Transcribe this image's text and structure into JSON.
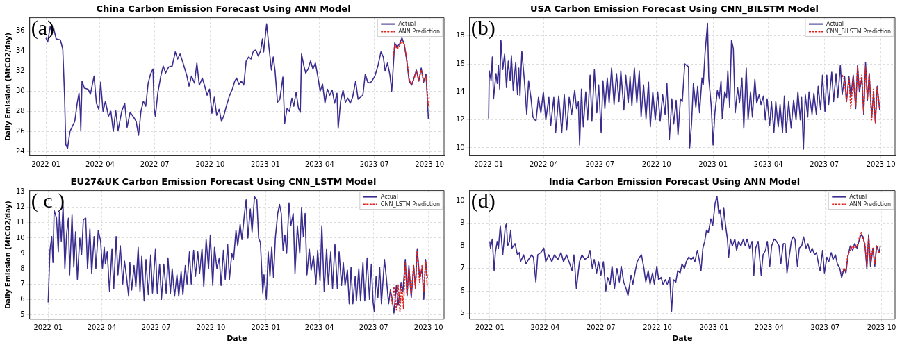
{
  "chart_data": [
    {
      "type": "line",
      "title": "China Carbon Emission Forecast Using ANN Model",
      "ylabel": "Daily Emission (MtCO2/day)",
      "annotations": [
        "(a)"
      ],
      "xlim": [
        "2021-12-05",
        "2023-10-25"
      ],
      "xticks": [
        "2022-01",
        "2022-04",
        "2022-07",
        "2022-10",
        "2023-01",
        "2023-04",
        "2023-07",
        "2023-10"
      ],
      "ylim": [
        23.6,
        37.3
      ],
      "yticks": [
        24,
        26,
        28,
        30,
        32,
        34,
        36
      ],
      "grid": true,
      "legend": "top right",
      "series": [
        {
          "name": "Actual",
          "color": "#3a2d8f",
          "x": [
            "2022-01-01",
            "2022-01-04",
            "2022-01-08",
            "2022-01-11",
            "2022-01-14",
            "2022-01-18",
            "2022-01-25",
            "2022-01-29",
            "2022-02-01",
            "2022-02-03",
            "2022-02-06",
            "2022-02-10",
            "2022-02-14",
            "2022-02-18",
            "2022-02-22",
            "2022-02-25",
            "2022-02-27",
            "2022-02-28",
            "2022-03-02",
            "2022-03-06",
            "2022-03-12",
            "2022-03-16",
            "2022-03-22",
            "2022-03-26",
            "2022-03-30",
            "2022-04-02",
            "2022-04-06",
            "2022-04-10",
            "2022-04-15",
            "2022-04-19",
            "2022-04-23",
            "2022-04-27",
            "2022-05-01",
            "2022-05-07",
            "2022-05-12",
            "2022-05-16",
            "2022-05-21",
            "2022-05-27",
            "2022-05-31",
            "2022-06-04",
            "2022-06-08",
            "2022-06-12",
            "2022-06-16",
            "2022-06-20",
            "2022-06-24",
            "2022-06-28",
            "2022-06-30",
            "2022-07-02",
            "2022-07-06",
            "2022-07-11",
            "2022-07-15",
            "2022-07-19",
            "2022-07-24",
            "2022-07-30",
            "2022-08-04",
            "2022-08-08",
            "2022-08-12",
            "2022-08-17",
            "2022-08-23",
            "2022-08-27",
            "2022-08-31",
            "2022-09-05",
            "2022-09-09",
            "2022-09-13",
            "2022-09-18",
            "2022-09-22",
            "2022-09-26",
            "2022-09-30",
            "2022-10-04",
            "2022-10-08",
            "2022-10-12",
            "2022-10-16",
            "2022-10-20",
            "2022-10-24",
            "2022-10-28",
            "2022-11-02",
            "2022-11-07",
            "2022-11-11",
            "2022-11-14",
            "2022-11-18",
            "2022-11-22",
            "2022-11-26",
            "2022-11-30",
            "2022-12-04",
            "2022-12-08",
            "2022-12-12",
            "2022-12-16",
            "2022-12-20",
            "2022-12-24",
            "2022-12-27",
            "2022-12-29",
            "2023-01-03",
            "2023-01-07",
            "2023-01-11",
            "2023-01-14",
            "2023-01-17",
            "2023-01-21",
            "2023-01-25",
            "2023-01-30",
            "2023-02-02",
            "2023-02-06",
            "2023-02-10",
            "2023-02-14",
            "2023-02-17",
            "2023-02-21",
            "2023-02-25",
            "2023-02-28",
            "2023-03-02",
            "2023-03-06",
            "2023-03-09",
            "2023-03-13",
            "2023-03-17",
            "2023-03-21",
            "2023-03-25",
            "2023-03-29",
            "2023-04-02",
            "2023-04-06",
            "2023-04-10",
            "2023-04-14",
            "2023-04-18",
            "2023-04-22",
            "2023-04-26",
            "2023-04-30",
            "2023-05-02",
            "2023-05-06",
            "2023-05-10",
            "2023-05-14",
            "2023-05-18",
            "2023-05-22",
            "2023-05-26",
            "2023-05-31",
            "2023-06-04",
            "2023-06-08",
            "2023-06-12",
            "2023-06-16",
            "2023-06-20",
            "2023-06-24",
            "2023-06-28",
            "2023-07-02",
            "2023-07-07",
            "2023-07-12",
            "2023-07-16",
            "2023-07-19",
            "2023-07-23",
            "2023-07-27",
            "2023-07-30",
            "2023-08-04",
            "2023-08-08",
            "2023-08-12",
            "2023-08-16",
            "2023-08-20",
            "2023-08-24",
            "2023-08-28",
            "2023-09-01",
            "2023-09-05",
            "2023-09-09",
            "2023-09-13",
            "2023-09-17",
            "2023-09-21",
            "2023-09-25",
            "2023-09-29"
          ],
          "values": [
            35.3,
            34.9,
            36.4,
            35.9,
            36.2,
            35.2,
            35.1,
            34.2,
            29.5,
            24.7,
            24.3,
            26.0,
            26.5,
            27.0,
            28.8,
            29.8,
            28.0,
            26.1,
            31.0,
            30.3,
            30.2,
            29.7,
            31.5,
            28.8,
            28.2,
            30.9,
            28.0,
            29.0,
            27.5,
            28.0,
            26.0,
            28.1,
            26.1,
            28.0,
            28.8,
            26.4,
            27.9,
            27.4,
            27.0,
            25.6,
            28.0,
            29.0,
            28.5,
            30.8,
            31.7,
            32.2,
            28.3,
            27.5,
            29.8,
            31.5,
            32.5,
            31.8,
            32.4,
            32.5,
            33.9,
            33.2,
            33.7,
            32.8,
            31.6,
            30.5,
            31.5,
            30.8,
            32.8,
            30.6,
            31.3,
            30.5,
            29.6,
            30.2,
            27.8,
            29.4,
            27.6,
            28.2,
            27.0,
            27.6,
            28.5,
            29.5,
            30.2,
            31.0,
            31.3,
            30.7,
            31.0,
            30.6,
            33.0,
            33.4,
            33.2,
            34.0,
            34.1,
            33.5,
            34.0,
            35.2,
            33.9,
            36.7,
            34.3,
            32.1,
            33.4,
            32.0,
            28.9,
            29.2,
            31.4,
            26.8,
            28.3,
            28.0,
            29.3,
            28.5,
            29.9,
            28.3,
            27.9,
            33.7,
            32.5,
            31.8,
            32.2,
            33.0,
            32.2,
            32.8,
            31.5,
            30.0,
            30.7,
            28.8,
            30.2,
            29.6,
            30.1,
            28.8,
            29.8,
            26.3,
            29.0,
            30.1,
            28.9,
            29.3,
            28.8,
            29.4,
            31.0,
            29.2,
            29.4,
            29.6,
            31.7,
            30.9,
            30.8,
            31.1,
            31.5,
            32.5,
            33.9,
            33.4,
            32.0,
            32.8,
            31.6,
            30.0,
            34.8,
            34.4,
            34.7,
            35.3,
            34.6,
            33.0,
            31.0,
            30.6,
            31.3,
            32.1,
            31.0,
            32.3,
            30.9,
            31.7,
            27.2
          ]
        },
        {
          "name": "ANN Prediction",
          "color": "#e0201b",
          "line_style": "dashed",
          "x": [
            "2023-08-01",
            "2023-08-04",
            "2023-08-08",
            "2023-08-12",
            "2023-08-16",
            "2023-08-20",
            "2023-08-24",
            "2023-08-28",
            "2023-09-01",
            "2023-09-05",
            "2023-09-09",
            "2023-09-13",
            "2023-09-17",
            "2023-09-21",
            "2023-09-25",
            "2023-09-29"
          ],
          "values": [
            33.2,
            34.6,
            34.2,
            34.5,
            35.1,
            34.6,
            33.2,
            31.2,
            30.7,
            31.2,
            32.0,
            31.1,
            32.1,
            31.0,
            31.5,
            28.5
          ]
        }
      ]
    },
    {
      "type": "line",
      "title": "USA Carbon Emission Forecast Using CNN_BILSTM Model",
      "annotations": [
        "(b)"
      ],
      "xlim": [
        "2021-12-01",
        "2023-10-24"
      ],
      "xticks": [
        "2022-01",
        "2022-04",
        "2022-07",
        "2022-10",
        "2023-01",
        "2023-04",
        "2023-07",
        "2023-10"
      ],
      "ylim": [
        9.45,
        19.3
      ],
      "yticks": [
        10,
        12,
        14,
        16,
        18
      ],
      "grid": true,
      "legend": "top right",
      "series": [
        {
          "name": "Actual",
          "color": "#3a2d8f",
          "x": [
            "2022-01-01",
            "2022-01-02",
            "2022-01-05",
            "2022-01-07",
            "2022-01-09",
            "2022-01-13",
            "2022-01-15",
            "2022-01-17",
            "2022-01-19",
            "2022-01-21",
            "2022-01-24",
            "2022-01-27",
            "2022-01-30",
            "2022-02-02",
            "2022-02-05",
            "2022-02-07",
            "2022-02-10",
            "2022-02-14",
            "2022-02-17",
            "2022-02-19",
            "2022-02-21",
            "2022-02-24",
            "2022-02-28",
            "2022-03-04",
            "2022-03-07",
            "2022-03-11",
            "2022-03-14",
            "2022-03-19",
            "2022-03-23",
            "2022-03-27",
            "2022-03-31",
            "2022-04-04",
            "2022-04-09",
            "2022-04-12",
            "2022-04-17",
            "2022-04-20",
            "2022-04-25",
            "2022-04-30",
            "2022-05-04",
            "2022-05-08",
            "2022-05-12",
            "2022-05-16",
            "2022-05-21",
            "2022-05-24",
            "2022-05-27",
            "2022-05-29",
            "2022-06-01",
            "2022-06-04",
            "2022-06-08",
            "2022-06-11",
            "2022-06-15",
            "2022-06-18",
            "2022-06-22",
            "2022-06-26",
            "2022-06-29",
            "2022-07-03",
            "2022-07-06",
            "2022-07-09",
            "2022-07-13",
            "2022-07-16",
            "2022-07-20",
            "2022-07-24",
            "2022-07-28",
            "2022-08-01",
            "2022-08-04",
            "2022-08-09",
            "2022-08-12",
            "2022-08-16",
            "2022-08-19",
            "2022-08-22",
            "2022-08-26",
            "2022-08-30",
            "2022-09-03",
            "2022-09-06",
            "2022-09-10",
            "2022-09-14",
            "2022-09-18",
            "2022-09-21",
            "2022-09-25",
            "2022-09-29",
            "2022-10-03",
            "2022-10-07",
            "2022-10-11",
            "2022-10-15",
            "2022-10-18",
            "2022-10-22",
            "2022-10-26",
            "2022-10-29",
            "2022-11-02",
            "2022-11-05",
            "2022-11-09",
            "2022-11-12",
            "2022-11-16",
            "2022-11-19",
            "2022-11-22",
            "2022-11-24",
            "2022-11-27",
            "2022-11-30",
            "2022-12-04",
            "2022-12-07",
            "2022-12-10",
            "2022-12-14",
            "2022-12-16",
            "2022-12-19",
            "2022-12-23",
            "2022-12-25",
            "2022-12-29",
            "2023-01-01",
            "2023-01-04",
            "2023-01-08",
            "2023-01-11",
            "2023-01-14",
            "2023-01-16",
            "2023-01-20",
            "2023-01-23",
            "2023-01-25",
            "2023-01-28",
            "2023-01-31",
            "2023-02-03",
            "2023-02-06",
            "2023-02-10",
            "2023-02-13",
            "2023-02-17",
            "2023-02-20",
            "2023-02-24",
            "2023-02-27",
            "2023-03-03",
            "2023-03-06",
            "2023-03-10",
            "2023-03-13",
            "2023-03-17",
            "2023-03-20",
            "2023-03-24",
            "2023-03-27",
            "2023-03-30",
            "2023-04-03",
            "2023-04-06",
            "2023-04-10",
            "2023-04-13",
            "2023-04-17",
            "2023-04-20",
            "2023-04-24",
            "2023-04-27",
            "2023-04-30",
            "2023-05-04",
            "2023-05-08",
            "2023-05-12",
            "2023-05-16",
            "2023-05-19",
            "2023-05-23",
            "2023-05-25",
            "2023-05-28",
            "2023-05-31",
            "2023-06-04",
            "2023-06-06",
            "2023-06-11",
            "2023-06-14",
            "2023-06-18",
            "2023-06-21",
            "2023-06-25",
            "2023-06-28",
            "2023-07-02",
            "2023-07-05",
            "2023-07-08",
            "2023-07-13",
            "2023-07-16",
            "2023-07-20",
            "2023-07-23",
            "2023-07-27",
            "2023-07-30",
            "2023-08-03",
            "2023-08-06",
            "2023-08-10",
            "2023-08-13",
            "2023-08-17",
            "2023-08-21",
            "2023-08-24",
            "2023-08-27",
            "2023-08-31",
            "2023-09-03",
            "2023-09-06",
            "2023-09-09",
            "2023-09-12",
            "2023-09-16",
            "2023-09-19",
            "2023-09-22",
            "2023-09-25",
            "2023-09-29"
          ],
          "values": [
            12.1,
            15.5,
            14.8,
            16.5,
            13.5,
            15.3,
            14.6,
            15.9,
            14.2,
            17.7,
            15.6,
            16.7,
            14.3,
            16.2,
            14.8,
            16.6,
            14.1,
            16.1,
            13.8,
            15.7,
            13.7,
            16.9,
            14.9,
            12.4,
            14.8,
            13.5,
            12.2,
            11.9,
            13.6,
            12.5,
            14.0,
            12.0,
            13.6,
            11.6,
            13.6,
            11.1,
            13.7,
            11.1,
            13.8,
            11.3,
            13.6,
            12.4,
            14.1,
            12.8,
            13.3,
            10.2,
            14.2,
            11.5,
            14.0,
            12.0,
            15.2,
            11.9,
            15.6,
            12.5,
            14.5,
            11.1,
            14.8,
            12.8,
            15.0,
            13.2,
            15.7,
            13.1,
            15.3,
            13.3,
            15.5,
            12.7,
            15.2,
            13.2,
            15.1,
            13.0,
            15.7,
            13.2,
            15.5,
            12.2,
            14.5,
            12.1,
            14.7,
            11.5,
            14.0,
            12.0,
            14.0,
            11.9,
            13.8,
            12.4,
            14.6,
            10.6,
            13.5,
            11.7,
            13.4,
            10.9,
            13.5,
            13.3,
            16.0,
            15.9,
            15.8,
            10.0,
            11.7,
            14.6,
            12.9,
            14.4,
            12.5,
            15.0,
            14.5,
            16.8,
            18.9,
            15.0,
            13.0,
            10.2,
            12.5,
            14.1,
            13.5,
            14.8,
            12.1,
            14.0,
            13.6,
            15.5,
            12.9,
            17.7,
            17.1,
            12.5,
            14.3,
            13.2,
            15.0,
            11.4,
            15.7,
            12.0,
            14.0,
            12.2,
            14.9,
            13.2,
            13.8,
            13.1,
            13.7,
            12.0,
            13.5,
            11.6,
            13.3,
            11.1,
            13.3,
            11.5,
            13.1,
            11.1,
            13.7,
            11.1,
            13.3,
            11.4,
            13.4,
            12.0,
            14.0,
            12.0,
            13.6,
            9.9,
            13.8,
            12.2,
            14.0,
            12.4,
            13.9,
            12.4,
            14.4,
            12.7,
            15.2,
            12.6,
            15.2,
            13.1,
            15.4,
            13.3,
            15.3,
            13.6,
            15.9,
            13.8,
            15.1,
            13.3,
            15.1,
            13.6,
            15.2,
            12.8,
            15.9,
            14.0,
            15.0,
            12.4,
            16.1,
            13.4,
            15.3,
            12.2,
            13.9,
            11.8,
            14.4,
            12.7
          ]
        },
        {
          "name": "CNN_BILSTM Prediction",
          "color": "#e0201b",
          "line_style": "dashed",
          "x": [
            "2023-07-30",
            "2023-08-03",
            "2023-08-06",
            "2023-08-10",
            "2023-08-13",
            "2023-08-17",
            "2023-08-21",
            "2023-08-24",
            "2023-08-27",
            "2023-08-31",
            "2023-09-03",
            "2023-09-06",
            "2023-09-09",
            "2023-09-12",
            "2023-09-16",
            "2023-09-19",
            "2023-09-22",
            "2023-09-25",
            "2023-09-29"
          ],
          "values": [
            15.2,
            14.8,
            13.3,
            15.0,
            12.8,
            15.0,
            13.0,
            15.8,
            14.2,
            15.2,
            12.5,
            15.8,
            13.5,
            15.3,
            12.0,
            14.2,
            11.8,
            14.3,
            12.8
          ]
        }
      ]
    },
    {
      "type": "line",
      "title": "EU27&UK Carbon Emission Forecast Using CNN_LSTM Model",
      "xlabel": "Date",
      "ylabel": "Daily Emission (MtCO2/day)",
      "annotations": [
        "( c )"
      ],
      "xlim": [
        "2021-12-01",
        "2023-10-27"
      ],
      "xticks": [
        "2022-01",
        "2022-04",
        "2022-07",
        "2022-10",
        "2023-01",
        "2023-04",
        "2023-07",
        "2023-10"
      ],
      "ylim": [
        4.7,
        13.1
      ],
      "yticks": [
        5,
        6,
        7,
        8,
        9,
        10,
        11,
        12,
        13
      ],
      "grid": true,
      "legend": "top right",
      "series": [
        {
          "name": "Actual",
          "color": "#3a2d8f",
          "x": [
            "2022-01-01",
            "2022-01-04",
            "2022-01-07",
            "2022-01-09",
            "2022-01-11",
            "2022-01-15",
            "2022-01-18",
            "2022-01-20",
            "2022-01-23",
            "2022-01-26",
            "2022-01-29",
            "2022-02-01",
            "2022-02-04",
            "2022-02-06",
            "2022-02-10",
            "2022-02-13",
            "2022-02-16",
            "2022-02-19",
            "2022-02-23",
            "2022-02-26",
            "2022-03-01",
            "2022-03-05",
            "2022-03-08",
            "2022-03-12",
            "2022-03-15",
            "2022-03-19",
            "2022-03-22",
            "2022-03-26",
            "2022-03-30",
            "2022-04-02",
            "2022-04-05",
            "2022-04-07",
            "2022-04-10",
            "2022-04-14",
            "2022-04-18",
            "2022-04-21",
            "2022-04-25",
            "2022-04-28",
            "2022-05-02",
            "2022-05-06",
            "2022-05-09",
            "2022-05-12",
            "2022-05-16",
            "2022-05-18",
            "2022-05-21",
            "2022-05-25",
            "2022-05-28",
            "2022-06-01",
            "2022-06-04",
            "2022-06-07",
            "2022-06-11",
            "2022-06-14",
            "2022-06-18",
            "2022-06-22",
            "2022-06-25",
            "2022-06-30",
            "2022-07-03",
            "2022-07-07",
            "2022-07-10",
            "2022-07-14",
            "2022-07-18",
            "2022-07-21",
            "2022-07-25",
            "2022-07-28",
            "2022-08-01",
            "2022-08-05",
            "2022-08-08",
            "2022-08-12",
            "2022-08-15",
            "2022-08-19",
            "2022-08-22",
            "2022-08-26",
            "2022-08-29",
            "2022-09-02",
            "2022-09-05",
            "2022-09-09",
            "2022-09-12",
            "2022-09-16",
            "2022-09-19",
            "2022-09-23",
            "2022-09-27",
            "2022-09-30",
            "2022-10-04",
            "2022-10-07",
            "2022-10-11",
            "2022-10-15",
            "2022-10-18",
            "2022-10-22",
            "2022-10-25",
            "2022-10-29",
            "2022-11-01",
            "2022-11-05",
            "2022-11-08",
            "2022-11-12",
            "2022-11-15",
            "2022-11-19",
            "2022-11-22",
            "2022-11-26",
            "2022-11-29",
            "2022-12-02",
            "2022-12-06",
            "2022-12-09",
            "2022-12-13",
            "2022-12-17",
            "2022-12-20",
            "2022-12-23",
            "2022-12-27",
            "2022-12-29",
            "2023-01-02",
            "2023-01-05",
            "2023-01-08",
            "2023-01-11",
            "2023-01-14",
            "2023-01-17",
            "2023-01-21",
            "2023-01-24",
            "2023-01-27",
            "2023-01-30",
            "2023-02-02",
            "2023-02-05",
            "2023-02-09",
            "2023-02-12",
            "2023-02-16",
            "2023-02-19",
            "2023-02-23",
            "2023-02-27",
            "2023-03-02",
            "2023-03-05",
            "2023-03-08",
            "2023-03-11",
            "2023-03-15",
            "2023-03-18",
            "2023-03-22",
            "2023-03-26",
            "2023-03-29",
            "2023-04-02",
            "2023-04-05",
            "2023-04-09",
            "2023-04-13",
            "2023-04-16",
            "2023-04-20",
            "2023-04-23",
            "2023-04-27",
            "2023-05-01",
            "2023-05-04",
            "2023-05-08",
            "2023-05-11",
            "2023-05-14",
            "2023-05-18",
            "2023-05-21",
            "2023-05-24",
            "2023-05-27",
            "2023-05-31",
            "2023-06-02",
            "2023-06-06",
            "2023-06-09",
            "2023-06-13",
            "2023-06-16",
            "2023-06-20",
            "2023-06-24",
            "2023-06-27",
            "2023-06-30",
            "2023-07-02",
            "2023-07-05",
            "2023-07-08",
            "2023-07-11",
            "2023-07-14",
            "2023-07-19",
            "2023-07-22",
            "2023-07-26",
            "2023-07-29",
            "2023-08-01",
            "2023-08-04",
            "2023-08-08",
            "2023-08-11",
            "2023-08-16",
            "2023-08-19",
            "2023-08-23",
            "2023-08-26",
            "2023-08-29",
            "2023-09-02",
            "2023-09-06",
            "2023-09-09",
            "2023-09-12",
            "2023-09-16",
            "2023-09-20",
            "2023-09-23",
            "2023-09-26",
            "2023-09-29"
          ],
          "values": [
            5.8,
            9.2,
            10.1,
            8.4,
            11.8,
            11.3,
            9.1,
            11.7,
            9.8,
            12.1,
            8.0,
            10.3,
            11.3,
            7.6,
            11.5,
            8.1,
            10.4,
            7.3,
            10.0,
            8.9,
            11.2,
            11.3,
            8.0,
            10.6,
            7.7,
            10.1,
            8.0,
            10.5,
            9.8,
            8.0,
            9.4,
            8.3,
            9.1,
            6.5,
            9.3,
            6.7,
            10.1,
            7.6,
            9.5,
            7.0,
            8.5,
            7.6,
            6.2,
            8.4,
            6.6,
            8.2,
            6.8,
            9.4,
            6.5,
            8.8,
            5.9,
            8.6,
            6.3,
            8.9,
            6.4,
            9.3,
            6.4,
            8.3,
            6.0,
            8.3,
            6.4,
            8.7,
            6.4,
            8.0,
            6.2,
            7.6,
            6.2,
            7.8,
            6.3,
            8.2,
            7.0,
            9.1,
            7.0,
            9.2,
            7.5,
            9.1,
            7.7,
            9.3,
            6.8,
            9.9,
            8.0,
            10.2,
            6.9,
            9.4,
            8.0,
            8.7,
            6.9,
            9.2,
            7.3,
            9.6,
            7.3,
            9.0,
            8.6,
            10.5,
            9.5,
            10.9,
            9.9,
            11.5,
            12.5,
            10.0,
            11.9,
            10.4,
            12.7,
            12.5,
            10.0,
            9.7,
            6.4,
            7.6,
            6.0,
            9.1,
            7.5,
            9.4,
            7.4,
            10.0,
            11.6,
            12.2,
            11.6,
            9.2,
            10.2,
            9.0,
            12.3,
            10.8,
            11.6,
            7.7,
            10.8,
            9.0,
            12.0,
            10.1,
            11.6,
            7.6,
            9.3,
            7.9,
            8.8,
            7.0,
            9.2,
            7.2,
            10.8,
            6.5,
            9.3,
            7.0,
            9.1,
            6.7,
            9.6,
            6.7,
            9.1,
            6.9,
            8.4,
            6.9,
            7.9,
            5.7,
            8.1,
            5.7,
            7.5,
            5.9,
            8.0,
            5.9,
            8.4,
            5.9,
            8.7,
            6.0,
            8.3,
            5.8,
            5.2,
            7.5,
            6.1,
            8.1,
            5.7,
            8.6,
            7.5,
            5.7,
            6.6,
            6.0,
            5.1,
            6.9,
            5.6,
            7.1,
            6.5,
            8.6,
            6.2,
            8.2,
            6.1,
            8.2,
            6.8,
            9.3,
            7.4,
            8.0,
            6.0,
            8.6,
            7.4
          ]
        },
        {
          "name": "CNN_LSTM Prediction",
          "color": "#e0201b",
          "line_style": "dashed",
          "x": [
            "2023-07-29",
            "2023-08-01",
            "2023-08-04",
            "2023-08-08",
            "2023-08-11",
            "2023-08-14",
            "2023-08-17",
            "2023-08-20",
            "2023-08-23",
            "2023-08-26",
            "2023-08-29",
            "2023-09-02",
            "2023-09-06",
            "2023-09-09",
            "2023-09-12",
            "2023-09-16",
            "2023-09-20",
            "2023-09-23",
            "2023-09-26",
            "2023-09-29"
          ],
          "values": [
            6.6,
            5.7,
            6.8,
            5.3,
            6.9,
            5.2,
            7.0,
            5.4,
            8.4,
            6.3,
            8.0,
            6.3,
            8.2,
            6.7,
            9.2,
            7.1,
            8.2,
            6.5,
            8.5,
            6.8
          ]
        }
      ]
    },
    {
      "type": "line",
      "title": "India Carbon Emission Forecast Using ANN Model",
      "xlabel": "Date",
      "annotations": [
        "(d)"
      ],
      "xlim": [
        "2021-11-29",
        "2023-10-23"
      ],
      "xticks": [
        "2022-01",
        "2022-04",
        "2022-07",
        "2022-10",
        "2023-01",
        "2023-04",
        "2023-07",
        "2023-10"
      ],
      "ylim": [
        4.75,
        10.45
      ],
      "yticks": [
        5,
        6,
        7,
        8,
        9,
        10
      ],
      "grid": true,
      "legend": "top right",
      "series": [
        {
          "name": "Actual",
          "color": "#3a2d8f",
          "x": [
            "2022-01-01",
            "2022-01-02",
            "2022-01-05",
            "2022-01-08",
            "2022-01-10",
            "2022-01-13",
            "2022-01-15",
            "2022-01-18",
            "2022-01-20",
            "2022-01-22",
            "2022-01-26",
            "2022-01-28",
            "2022-01-30",
            "2022-02-02",
            "2022-02-04",
            "2022-02-06",
            "2022-02-11",
            "2022-02-15",
            "2022-02-18",
            "2022-02-20",
            "2022-02-25",
            "2022-03-01",
            "2022-03-05",
            "2022-03-10",
            "2022-03-13",
            "2022-03-17",
            "2022-03-20",
            "2022-03-25",
            "2022-03-30",
            "2022-04-02",
            "2022-04-07",
            "2022-04-12",
            "2022-04-16",
            "2022-04-22",
            "2022-04-27",
            "2022-05-01",
            "2022-05-06",
            "2022-05-10",
            "2022-05-15",
            "2022-05-18",
            "2022-05-22",
            "2022-05-27",
            "2022-05-31",
            "2022-06-05",
            "2022-06-10",
            "2022-06-13",
            "2022-06-17",
            "2022-06-20",
            "2022-06-24",
            "2022-06-27",
            "2022-07-01",
            "2022-07-05",
            "2022-07-09",
            "2022-07-12",
            "2022-07-16",
            "2022-07-19",
            "2022-07-23",
            "2022-07-27",
            "2022-07-31",
            "2022-08-03",
            "2022-08-07",
            "2022-08-11",
            "2022-08-14",
            "2022-08-19",
            "2022-08-22",
            "2022-08-26",
            "2022-08-29",
            "2022-09-02",
            "2022-09-05",
            "2022-09-09",
            "2022-09-12",
            "2022-09-16",
            "2022-09-19",
            "2022-09-23",
            "2022-09-26",
            "2022-09-30",
            "2022-10-03",
            "2022-10-07",
            "2022-10-10",
            "2022-10-14",
            "2022-10-17",
            "2022-10-21",
            "2022-10-24",
            "2022-10-27",
            "2022-10-31",
            "2022-11-03",
            "2022-11-07",
            "2022-11-10",
            "2022-11-14",
            "2022-11-17",
            "2022-11-21",
            "2022-11-25",
            "2022-11-28",
            "2022-12-01",
            "2022-12-05",
            "2022-12-08",
            "2022-12-11",
            "2022-12-14",
            "2022-12-17",
            "2022-12-20",
            "2022-12-23",
            "2022-12-27",
            "2022-12-30",
            "2023-01-03",
            "2023-01-06",
            "2023-01-09",
            "2023-01-11",
            "2023-01-15",
            "2023-01-17",
            "2023-01-20",
            "2023-01-23",
            "2023-01-25",
            "2023-01-28",
            "2023-01-31",
            "2023-02-04",
            "2023-02-07",
            "2023-02-10",
            "2023-02-14",
            "2023-02-18",
            "2023-02-21",
            "2023-02-24",
            "2023-02-28",
            "2023-03-04",
            "2023-03-07",
            "2023-03-10",
            "2023-03-14",
            "2023-03-16",
            "2023-03-19",
            "2023-03-22",
            "2023-03-26",
            "2023-03-29",
            "2023-04-02",
            "2023-04-05",
            "2023-04-09",
            "2023-04-13",
            "2023-04-17",
            "2023-04-20",
            "2023-04-24",
            "2023-04-27",
            "2023-04-30",
            "2023-05-04",
            "2023-05-07",
            "2023-05-10",
            "2023-05-13",
            "2023-05-17",
            "2023-05-20",
            "2023-05-24",
            "2023-05-27",
            "2023-05-31",
            "2023-06-03",
            "2023-06-07",
            "2023-06-10",
            "2023-06-14",
            "2023-06-17",
            "2023-06-21",
            "2023-06-23",
            "2023-06-27",
            "2023-06-30",
            "2023-07-04",
            "2023-07-07",
            "2023-07-11",
            "2023-07-14",
            "2023-07-18",
            "2023-07-21",
            "2023-07-25",
            "2023-07-28",
            "2023-08-01",
            "2023-08-04",
            "2023-08-07",
            "2023-08-11",
            "2023-08-15",
            "2023-08-18",
            "2023-08-22",
            "2023-08-25",
            "2023-08-29",
            "2023-09-01",
            "2023-09-04",
            "2023-09-07",
            "2023-09-10",
            "2023-09-13",
            "2023-09-17",
            "2023-09-20",
            "2023-09-23",
            "2023-09-27",
            "2023-09-29"
          ],
          "values": [
            8.2,
            7.9,
            8.3,
            6.9,
            7.7,
            8.2,
            7.9,
            8.9,
            8.3,
            7.6,
            8.8,
            9.0,
            8.0,
            8.2,
            8.7,
            7.9,
            8.1,
            7.6,
            7.7,
            7.3,
            7.6,
            7.2,
            7.4,
            7.6,
            7.5,
            6.4,
            7.6,
            7.7,
            7.9,
            7.3,
            7.6,
            7.3,
            7.6,
            7.4,
            7.7,
            7.3,
            7.6,
            7.3,
            6.9,
            7.6,
            6.1,
            7.3,
            7.6,
            7.4,
            7.5,
            7.8,
            7.0,
            7.4,
            6.8,
            7.3,
            6.7,
            7.3,
            6.0,
            6.6,
            6.3,
            7.1,
            6.1,
            7.0,
            6.4,
            7.1,
            6.4,
            6.1,
            5.8,
            6.7,
            6.3,
            6.9,
            7.3,
            7.5,
            7.6,
            7.0,
            6.4,
            6.9,
            6.3,
            6.8,
            6.3,
            7.1,
            6.5,
            6.6,
            6.3,
            6.5,
            6.3,
            6.6,
            5.1,
            6.5,
            6.4,
            6.9,
            6.8,
            7.2,
            7.0,
            7.3,
            7.5,
            7.4,
            7.5,
            7.3,
            7.8,
            7.4,
            6.9,
            7.9,
            8.2,
            8.7,
            8.6,
            9.2,
            8.9,
            9.9,
            10.2,
            9.4,
            9.6,
            8.7,
            9.7,
            8.9,
            8.3,
            7.5,
            8.3,
            8.0,
            8.3,
            7.8,
            8.2,
            8.0,
            8.3,
            8.0,
            8.3,
            7.9,
            8.2,
            6.7,
            7.9,
            8.2,
            7.6,
            6.7,
            7.6,
            7.8,
            8.2,
            7.1,
            8.0,
            8.3,
            8.2,
            8.0,
            7.2,
            8.1,
            8.1,
            6.8,
            7.6,
            8.2,
            8.4,
            8.3,
            7.1,
            7.9,
            8.0,
            8.4,
            7.9,
            8.1,
            7.7,
            7.9,
            7.6,
            7.7,
            7.1,
            6.9,
            7.8,
            6.8,
            7.5,
            7.3,
            7.7,
            7.4,
            7.6,
            7.2,
            7.0,
            6.6,
            7.0,
            6.8,
            7.5,
            8.0,
            7.8,
            8.1,
            7.9,
            8.2,
            8.5,
            8.4,
            8.0,
            7.0,
            8.5,
            7.1,
            7.9,
            7.1,
            8.0,
            7.7,
            8.0
          ]
        },
        {
          "name": "ANN Prediction",
          "color": "#e0201b",
          "line_style": "dashed",
          "x": [
            "2023-07-28",
            "2023-08-01",
            "2023-08-04",
            "2023-08-07",
            "2023-08-11",
            "2023-08-15",
            "2023-08-18",
            "2023-08-22",
            "2023-08-25",
            "2023-08-29",
            "2023-09-01",
            "2023-09-04",
            "2023-09-07",
            "2023-09-10",
            "2023-09-13",
            "2023-09-17",
            "2023-09-20",
            "2023-09-23",
            "2023-09-27"
          ],
          "values": [
            6.8,
            7.0,
            6.9,
            7.6,
            7.8,
            8.0,
            7.9,
            8.0,
            8.3,
            8.6,
            8.3,
            8.1,
            7.1,
            8.4,
            7.3,
            7.9,
            7.2,
            8.0,
            7.7
          ]
        }
      ]
    }
  ]
}
